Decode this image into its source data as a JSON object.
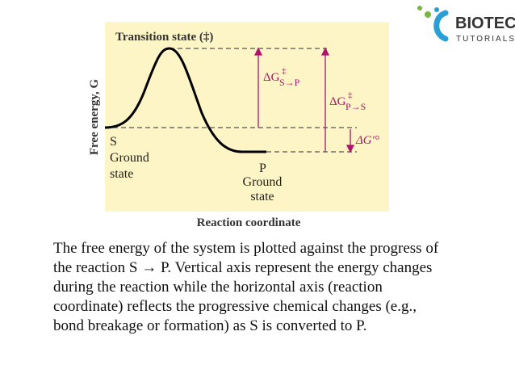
{
  "logo": {
    "name": "BIOTECH",
    "tagline": "TUTORIALS"
  },
  "diagram": {
    "y_axis_label": "Free energy, G",
    "x_axis_label": "Reaction coordinate",
    "transition_state": "Transition state (‡)",
    "start": {
      "symbol": "S",
      "label_line1": "Ground",
      "label_line2": "state"
    },
    "end": {
      "symbol": "P",
      "label_line1": "Ground",
      "label_line2": "state"
    },
    "dg_forward": {
      "symbol": "ΔG",
      "superscript": "‡",
      "subscript": "S→P"
    },
    "dg_reverse": {
      "symbol": "ΔG",
      "superscript": "‡",
      "subscript": "P→S"
    },
    "dg_standard": "ΔG′°"
  },
  "caption": {
    "lines": [
      "The free energy of the system is plotted against the progress of",
      "the reaction S → P.  Vertical axis represent the energy changes",
      "during the reaction while the horizontal axis (reaction",
      "coordinate) reflects the progressive chemical changes (e.g.,",
      "bond breakage or formation) as S is converted to P."
    ]
  }
}
